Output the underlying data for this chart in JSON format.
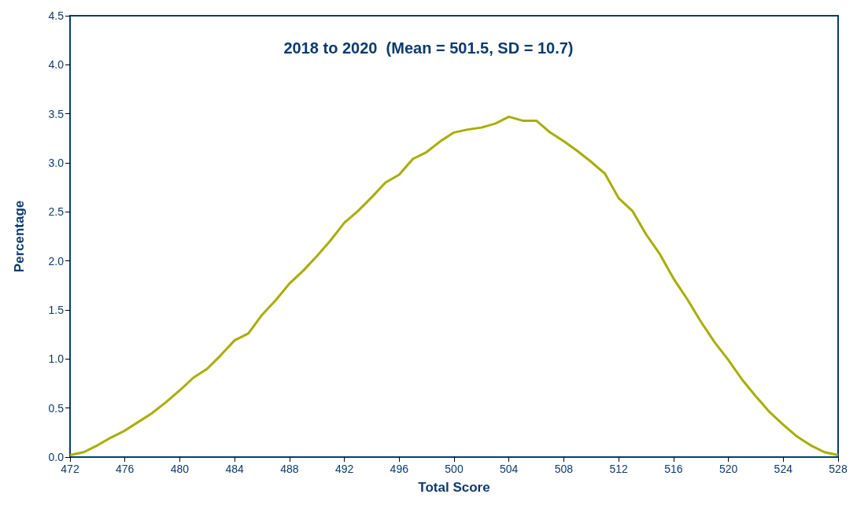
{
  "chart_data": {
    "type": "line",
    "title": "2018 to 2020  (Mean = 501.5, SD = 10.7)",
    "xlabel": "Total Score",
    "ylabel": "Percentage",
    "x": [
      472,
      473,
      474,
      475,
      476,
      477,
      478,
      479,
      480,
      481,
      482,
      483,
      484,
      485,
      486,
      487,
      488,
      489,
      490,
      491,
      492,
      493,
      494,
      495,
      496,
      497,
      498,
      499,
      500,
      501,
      502,
      503,
      504,
      505,
      506,
      507,
      508,
      509,
      510,
      511,
      512,
      513,
      514,
      515,
      516,
      517,
      518,
      519,
      520,
      521,
      522,
      523,
      524,
      525,
      526,
      527,
      528
    ],
    "series": [
      {
        "color": "#a8ad00",
        "values": [
          0.02,
          0.05,
          0.12,
          0.2,
          0.27,
          0.36,
          0.45,
          0.56,
          0.68,
          0.81,
          0.9,
          1.04,
          1.19,
          1.26,
          1.45,
          1.6,
          1.77,
          1.9,
          2.05,
          2.21,
          2.39,
          2.51,
          2.65,
          2.8,
          2.88,
          3.04,
          3.11,
          3.22,
          3.31,
          3.34,
          3.36,
          3.4,
          3.47,
          3.43,
          3.43,
          3.31,
          3.22,
          3.12,
          3.01,
          2.89,
          2.64,
          2.51,
          2.27,
          2.07,
          1.82,
          1.61,
          1.38,
          1.17,
          0.99,
          0.79,
          0.62,
          0.46,
          0.33,
          0.21,
          0.12,
          0.05,
          0.02
        ]
      }
    ],
    "xlim": [
      472,
      528
    ],
    "xticks": [
      472,
      476,
      480,
      484,
      488,
      492,
      496,
      500,
      504,
      508,
      512,
      516,
      520,
      524,
      528
    ],
    "ylim": [
      0,
      4.5
    ],
    "yticks": [
      {
        "value": 0,
        "label": "0.0"
      },
      0.5,
      {
        "value": 1,
        "label": "1.0"
      },
      1.5,
      {
        "value": 2,
        "label": "2.0"
      },
      2.5,
      {
        "value": 3,
        "label": "3.0"
      },
      3.5,
      {
        "value": 4,
        "label": "4.0"
      },
      4.5
    ],
    "grid": false,
    "marker": "none",
    "line_style": "solid"
  }
}
